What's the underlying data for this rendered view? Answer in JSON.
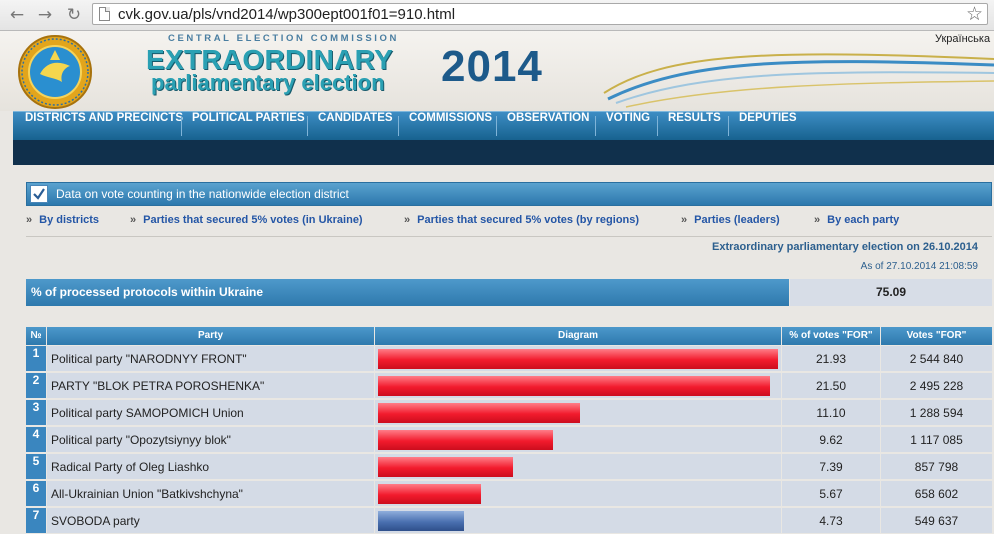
{
  "browser": {
    "url": "cvk.gov.ua/pls/vnd2014/wp300ept001f01=910.html"
  },
  "header": {
    "commission": "CENTRAL ELECTION COMMISSION",
    "title_line1": "EXTRAORDINARY",
    "title_line2": "parliamentary election",
    "year": "2014",
    "language_link": "Українська"
  },
  "menu": [
    {
      "label": "DISTRICTS AND PRECINCTS"
    },
    {
      "label": "POLITICAL PARTIES"
    },
    {
      "label": "CANDIDATES"
    },
    {
      "label": "COMMISSIONS"
    },
    {
      "label": "OBSERVATION"
    },
    {
      "label": "VOTING"
    },
    {
      "label": "RESULTS"
    },
    {
      "label": "DEPUTIES"
    }
  ],
  "section": {
    "title": "Data on vote counting in the nationwide election district"
  },
  "sublinks": [
    {
      "arrow": "»",
      "label": "By districts"
    },
    {
      "arrow": "»",
      "label": "Parties that secured 5% votes (in Ukraine)"
    },
    {
      "arrow": "»",
      "label": "Parties that secured 5% votes (by regions)"
    },
    {
      "arrow": "»",
      "label": "Parties (leaders)"
    },
    {
      "arrow": "»",
      "label": "By each party"
    }
  ],
  "election_info": {
    "title": "Extraordinary parliamentary election on 26.10.2014",
    "as_of": "As of 27.10.2014 21:08:59"
  },
  "protocols": {
    "label": "% of processed protocols within Ukraine",
    "value": "75.09"
  },
  "table": {
    "headers": {
      "num": "№",
      "party": "Party",
      "diagram": "Diagram",
      "pct": "% of votes \"FOR\"",
      "votes": "Votes \"FOR\""
    },
    "rows": [
      {
        "num": "1",
        "party": "Political party \"NARODNYY FRONT\"",
        "pct": "21.93",
        "votes": "2 544 840",
        "bar_color": "red"
      },
      {
        "num": "2",
        "party": "PARTY \"BLOK PETRA POROSHENKA\"",
        "pct": "21.50",
        "votes": "2 495 228",
        "bar_color": "red"
      },
      {
        "num": "3",
        "party": "Political party SAMOPOMICH Union",
        "pct": "11.10",
        "votes": "1 288 594",
        "bar_color": "red"
      },
      {
        "num": "4",
        "party": "Political party \"Opozytsiynyy blok\"",
        "pct": "9.62",
        "votes": "1 117 085",
        "bar_color": "red"
      },
      {
        "num": "5",
        "party": "Radical Party of Oleg Liashko",
        "pct": "7.39",
        "votes": "857 798",
        "bar_color": "red"
      },
      {
        "num": "6",
        "party": "All-Ukrainian Union \"Batkivshchyna\"",
        "pct": "5.67",
        "votes": "658 602",
        "bar_color": "red"
      },
      {
        "num": "7",
        "party": "SVOBODA party",
        "pct": "4.73",
        "votes": "549 637",
        "bar_color": "blue"
      }
    ]
  },
  "chart_data": {
    "type": "bar",
    "categories": [
      "Political party \"NARODNYY FRONT\"",
      "PARTY \"BLOK PETRA POROSHENKA\"",
      "Political party SAMOPOMICH Union",
      "Political party \"Opozytsiynyy blok\"",
      "Radical Party of Oleg Liashko",
      "All-Ukrainian Union \"Batkivshchyna\"",
      "SVOBODA party"
    ],
    "values": [
      21.93,
      21.5,
      11.1,
      9.62,
      7.39,
      5.67,
      4.73
    ],
    "colors": [
      "#f21b2d",
      "#f21b2d",
      "#f21b2d",
      "#f21b2d",
      "#f21b2d",
      "#f21b2d",
      "#4a70b0"
    ]
  }
}
